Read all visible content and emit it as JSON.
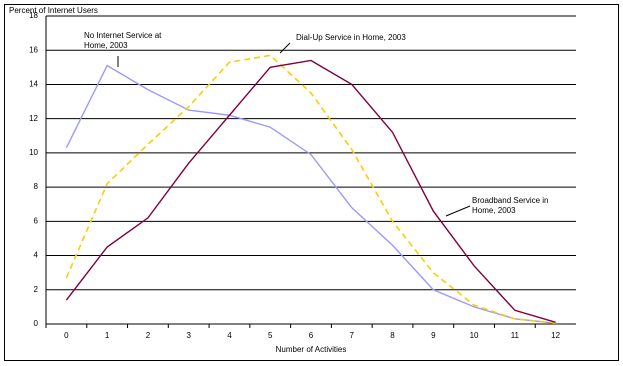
{
  "chart_data": {
    "type": "line",
    "y_label": "Percent of Internet Users",
    "x_label": "Number of Activities",
    "categories": [
      "0",
      "1",
      "2",
      "3",
      "4",
      "5",
      "6",
      "7",
      "8",
      "9",
      "10",
      "11",
      "12"
    ],
    "ylim": [
      0,
      18
    ],
    "yticks": [
      0,
      2,
      4,
      6,
      8,
      10,
      12,
      14,
      16,
      18
    ],
    "grid": true,
    "series": [
      {
        "name": [
          "No Internet Service at",
          "Home, 2003"
        ],
        "color": "#9999ff",
        "dash": false,
        "values": [
          10.3,
          15.1,
          13.7,
          12.5,
          12.2,
          11.5,
          9.9,
          6.8,
          4.6,
          2.0,
          1.0,
          0.3,
          0.05
        ]
      },
      {
        "name": [
          "Dial-Up Service in Home, 2003"
        ],
        "color": "#ffcc00",
        "dash": true,
        "values": [
          2.7,
          8.2,
          10.5,
          12.7,
          15.3,
          15.7,
          13.5,
          10.2,
          6.0,
          3.0,
          1.1,
          0.3,
          0.05
        ]
      },
      {
        "name": [
          "Broadband Service in",
          "Home, 2003"
        ],
        "color": "#800040",
        "dash": false,
        "values": [
          1.4,
          4.5,
          6.2,
          9.4,
          12.2,
          15.0,
          15.4,
          14.0,
          11.2,
          6.6,
          3.4,
          0.8,
          0.1
        ]
      }
    ]
  }
}
